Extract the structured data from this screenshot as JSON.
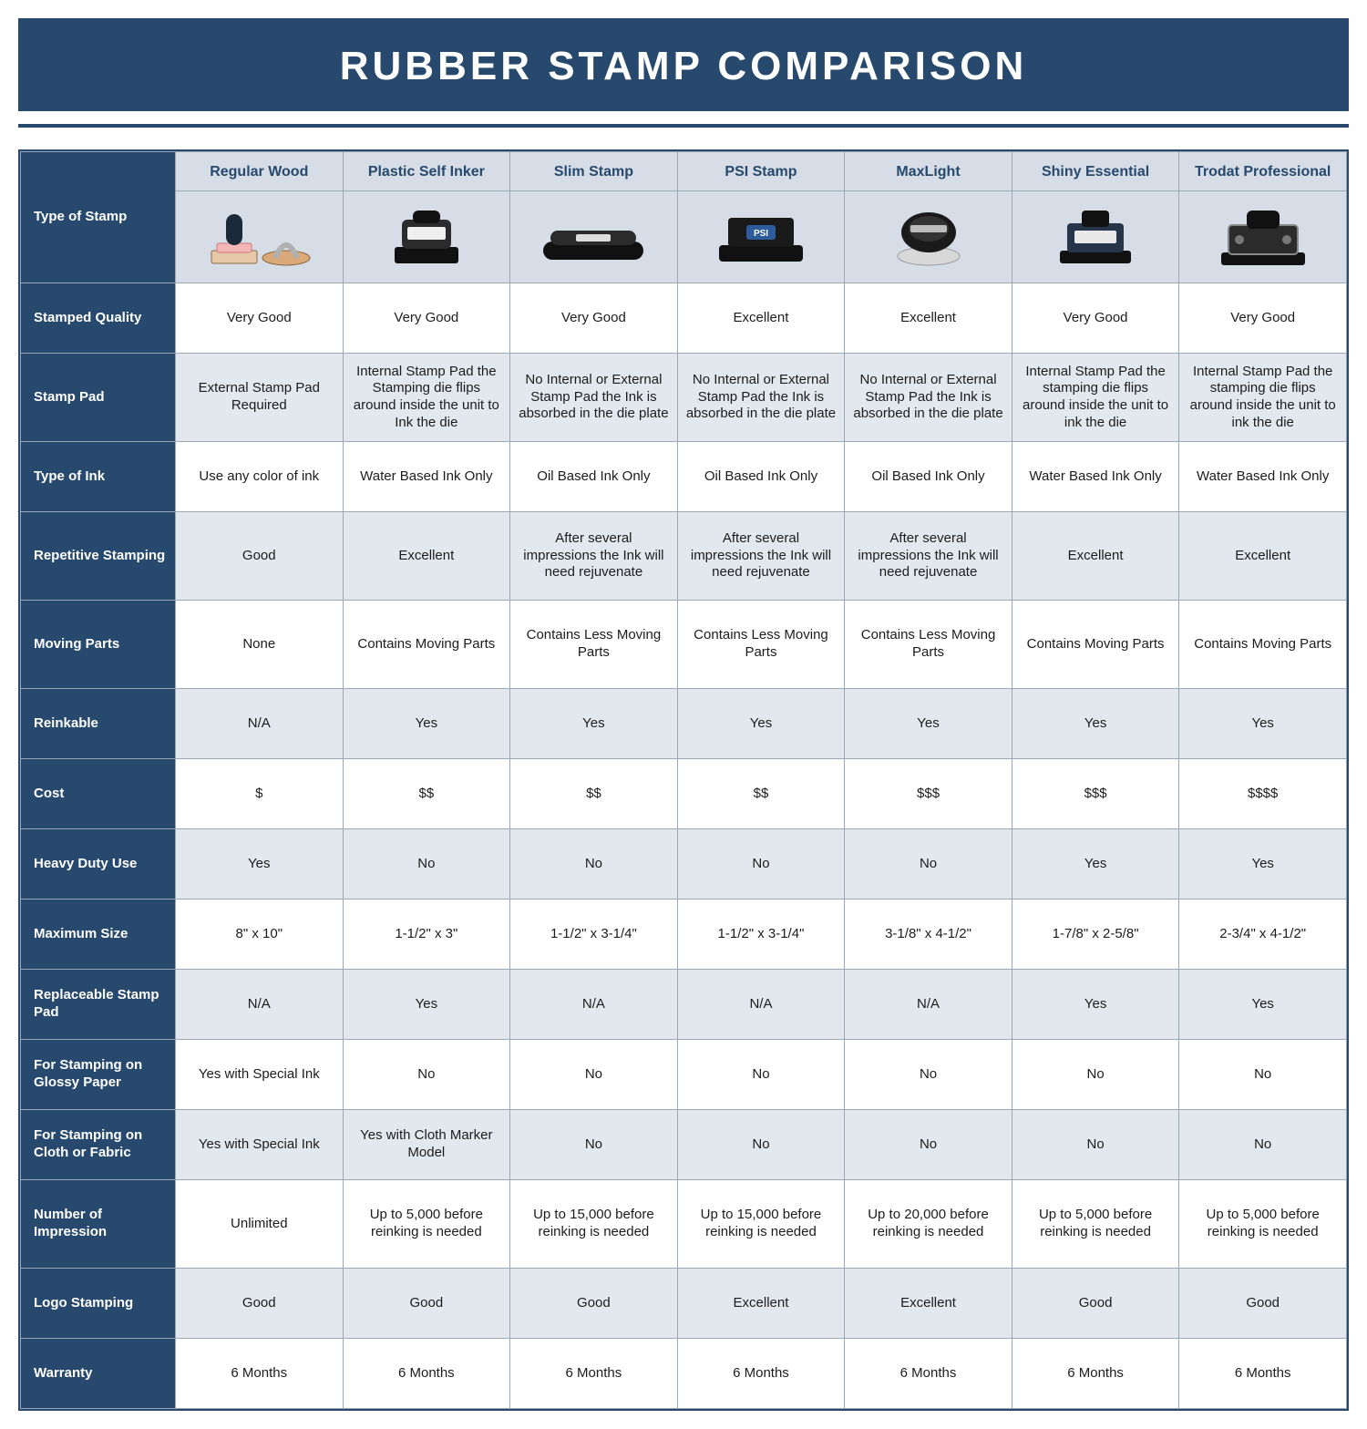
{
  "colors": {
    "primary": "#27496d",
    "header_shade": "#d6dde6",
    "row_shade": "#e3e8ef",
    "border": "#9aa7b5",
    "background": "#ffffff",
    "text": "#1c1c1c"
  },
  "title": "RUBBER STAMP COMPARISON",
  "columns": [
    "Regular Wood",
    "Plastic Self Inker",
    "Slim Stamp",
    "PSI Stamp",
    "MaxLight",
    "Shiny Essential",
    "Trodat Professional"
  ],
  "type_of_stamp_label": "Type of Stamp",
  "rows": [
    {
      "label": "Stamped Quality",
      "shade": false,
      "tall": false,
      "cells": [
        "Very Good",
        "Very Good",
        "Very Good",
        "Excellent",
        "Excellent",
        "Very Good",
        "Very Good"
      ]
    },
    {
      "label": "Stamp Pad",
      "shade": true,
      "tall": true,
      "cells": [
        "External Stamp Pad Required",
        "Internal Stamp Pad the Stamping die flips around inside the unit to Ink the die",
        "No Internal or External Stamp Pad the Ink is absorbed in the die plate",
        "No Internal or External Stamp Pad the Ink is absorbed in the die plate",
        "No Internal or External Stamp Pad the Ink is absorbed in the die plate",
        "Internal Stamp Pad the stamping die flips around inside the unit to ink the die",
        "Internal Stamp Pad the stamping die flips around inside the unit to ink the die"
      ]
    },
    {
      "label": "Type of Ink",
      "shade": false,
      "tall": false,
      "cells": [
        "Use any color of ink",
        "Water Based Ink Only",
        "Oil Based Ink Only",
        "Oil Based Ink Only",
        "Oil Based Ink Only",
        "Water Based Ink Only",
        "Water Based Ink Only"
      ]
    },
    {
      "label": "Repetitive Stamping",
      "shade": true,
      "tall": true,
      "cells": [
        "Good",
        "Excellent",
        "After several impressions the Ink will need rejuvenate",
        "After several impressions the Ink will need rejuvenate",
        "After several impressions the Ink will need rejuvenate",
        "Excellent",
        "Excellent"
      ]
    },
    {
      "label": "Moving Parts",
      "shade": false,
      "tall": true,
      "cells": [
        "None",
        "Contains Moving Parts",
        "Contains Less Moving Parts",
        "Contains Less Moving Parts",
        "Contains Less Moving Parts",
        "Contains Moving Parts",
        "Contains Moving Parts"
      ]
    },
    {
      "label": "Reinkable",
      "shade": true,
      "tall": false,
      "cells": [
        "N/A",
        "Yes",
        "Yes",
        "Yes",
        "Yes",
        "Yes",
        "Yes"
      ]
    },
    {
      "label": "Cost",
      "shade": false,
      "tall": false,
      "cells": [
        "$",
        "$$",
        "$$",
        "$$",
        "$$$",
        "$$$",
        "$$$$"
      ]
    },
    {
      "label": "Heavy Duty Use",
      "shade": true,
      "tall": false,
      "cells": [
        "Yes",
        "No",
        "No",
        "No",
        "No",
        "Yes",
        "Yes"
      ]
    },
    {
      "label": "Maximum Size",
      "shade": false,
      "tall": false,
      "cells": [
        "8\" x 10\"",
        "1-1/2\" x 3\"",
        "1-1/2\" x 3-1/4\"",
        "1-1/2\" x 3-1/4\"",
        "3-1/8\" x 4-1/2\"",
        "1-7/8\" x 2-5/8\"",
        "2-3/4\" x 4-1/2\""
      ]
    },
    {
      "label": "Replaceable Stamp Pad",
      "shade": true,
      "tall": false,
      "cells": [
        "N/A",
        "Yes",
        "N/A",
        "N/A",
        "N/A",
        "Yes",
        "Yes"
      ]
    },
    {
      "label": "For Stamping on Glossy Paper",
      "shade": false,
      "tall": false,
      "cells": [
        "Yes with Special Ink",
        "No",
        "No",
        "No",
        "No",
        "No",
        "No"
      ]
    },
    {
      "label": "For Stamping on Cloth or Fabric",
      "shade": true,
      "tall": false,
      "cells": [
        "Yes with Special Ink",
        "Yes with Cloth Marker Model",
        "No",
        "No",
        "No",
        "No",
        "No"
      ]
    },
    {
      "label": "Number of Impression",
      "shade": false,
      "tall": true,
      "cells": [
        "Unlimited",
        "Up to 5,000 before reinking is needed",
        "Up to 15,000 before reinking is needed",
        "Up to 15,000 before reinking is needed",
        "Up to 20,000 before reinking is needed",
        "Up to 5,000 before reinking is needed",
        "Up to 5,000 before reinking is needed"
      ]
    },
    {
      "label": "Logo Stamping",
      "shade": true,
      "tall": false,
      "cells": [
        "Good",
        "Good",
        "Good",
        "Excellent",
        "Excellent",
        "Good",
        "Good"
      ]
    },
    {
      "label": "Warranty",
      "shade": false,
      "tall": false,
      "cells": [
        "6 Months",
        "6 Months",
        "6 Months",
        "6 Months",
        "6 Months",
        "6 Months",
        "6 Months"
      ]
    }
  ],
  "icons": [
    "wood-stamp-icon",
    "self-inker-icon",
    "slim-stamp-icon",
    "psi-stamp-icon",
    "maxlight-stamp-icon",
    "shiny-essential-icon",
    "trodat-professional-icon"
  ]
}
